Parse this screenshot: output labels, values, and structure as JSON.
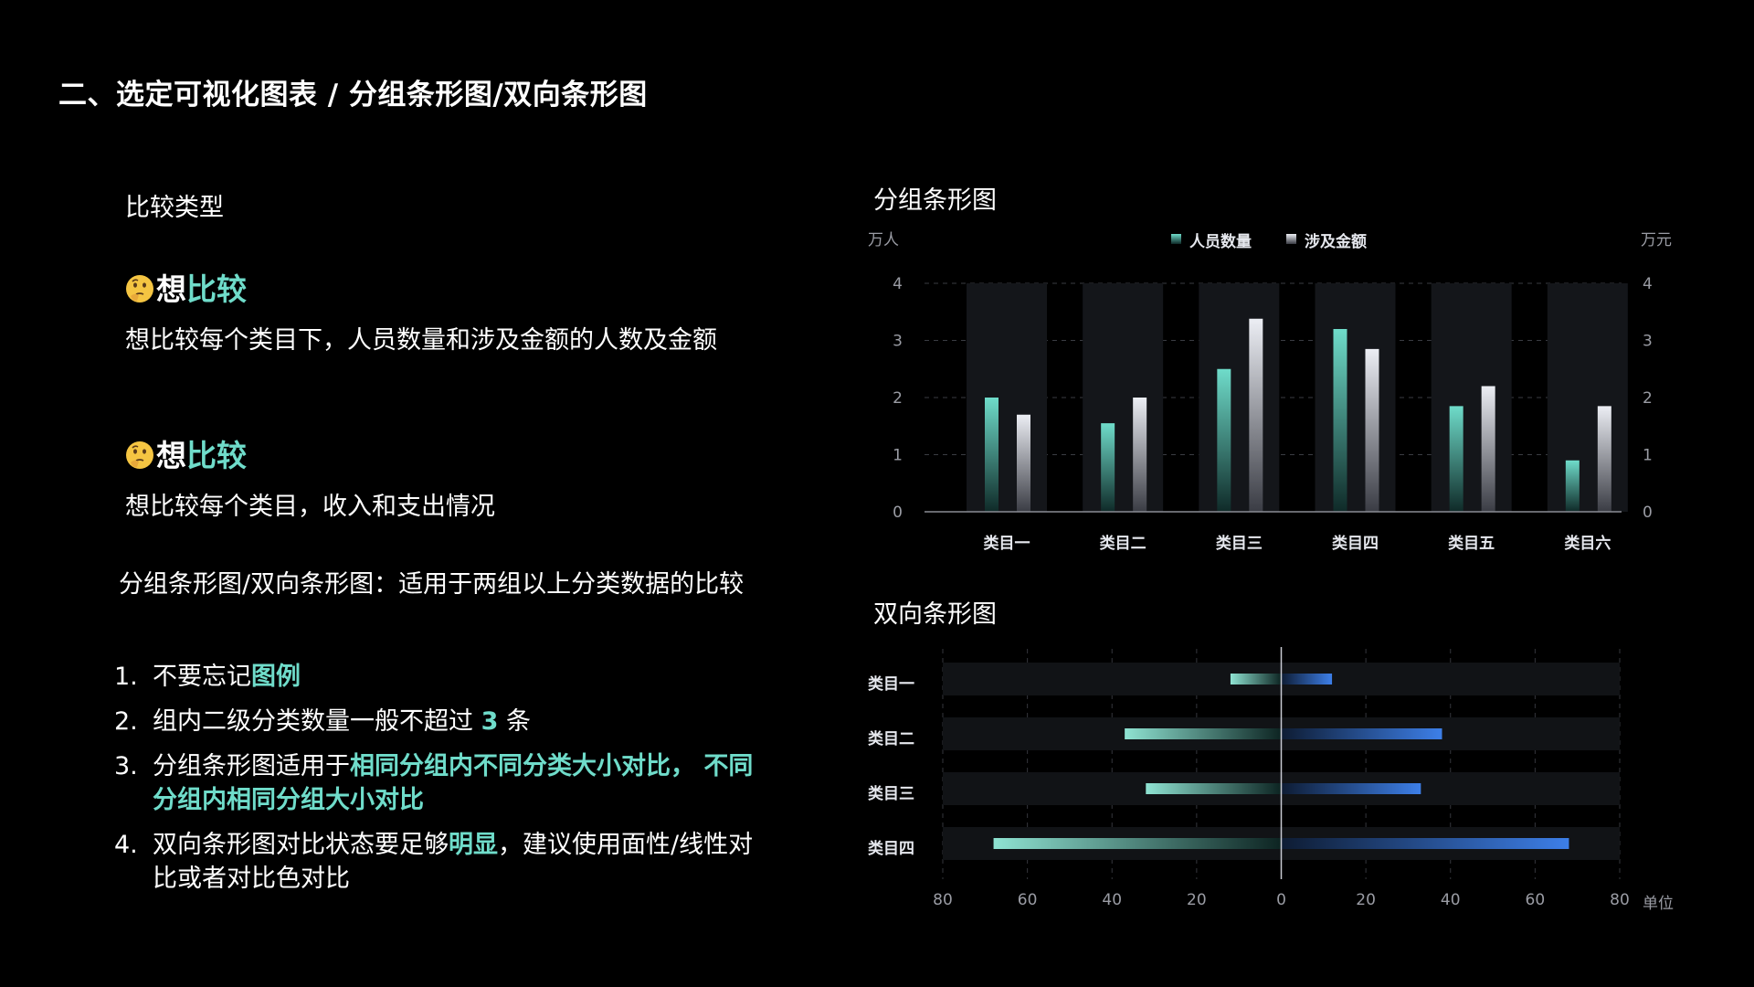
{
  "page_title": "二、选定可视化图表 / 分组条形图/双向条形图",
  "left": {
    "subhead": "比较类型",
    "think_prefix": "想",
    "think_accent": "比较",
    "block1_desc": "想比较每个类目下，人员数量和涉及金额的人数及金额",
    "block2_desc": "想比较每个类目，收入和支出情况",
    "summary": "分组条形图/双向条形图：适用于两组以上分类数据的比较",
    "tips": [
      {
        "num": "1.",
        "parts": [
          {
            "t": "不要忘记",
            "hl": false
          },
          {
            "t": "图例",
            "hl": true
          }
        ]
      },
      {
        "num": "2.",
        "parts": [
          {
            "t": "组内二级分类数量一般不超过 ",
            "hl": false
          },
          {
            "t": "3",
            "hl": true
          },
          {
            "t": " 条",
            "hl": false
          }
        ]
      },
      {
        "num": "3.",
        "parts": [
          {
            "t": "分组条形图适用于",
            "hl": false
          },
          {
            "t": "相同分组内不同分类大小对比， 不同分组内相同分组大小对比",
            "hl": true
          }
        ]
      },
      {
        "num": "4.",
        "parts": [
          {
            "t": "双向条形图对比状态要足够",
            "hl": false
          },
          {
            "t": "明显",
            "hl": true
          },
          {
            "t": "，建议使用面性/线性对比或者对比色对比",
            "hl": false
          }
        ]
      }
    ]
  },
  "colors": {
    "accent": "#6fdcca",
    "teal": "#5ec7b4",
    "silver": "#d8dbe4",
    "blue": "#3d7fe8",
    "background": "#000000"
  },
  "chart_data": [
    {
      "type": "bar",
      "title": "分组条形图",
      "categories": [
        "类目一",
        "类目二",
        "类目三",
        "类目四",
        "类目五",
        "类目六"
      ],
      "series": [
        {
          "name": "人员数量",
          "values": [
            2.0,
            1.55,
            2.5,
            3.2,
            1.85,
            0.9
          ]
        },
        {
          "name": "涉及金额",
          "values": [
            1.7,
            2.0,
            3.38,
            2.85,
            2.2,
            1.85
          ]
        }
      ],
      "ylabel_left": "万人",
      "ylabel_right": "万元",
      "ylim": [
        0,
        4
      ],
      "yticks": [
        0,
        1,
        2,
        3,
        4
      ],
      "legend_position": "top-center",
      "grid": true
    },
    {
      "type": "bar",
      "orientation": "horizontal-diverging",
      "title": "双向条形图",
      "categories": [
        "类目一",
        "类目二",
        "类目三",
        "类目四"
      ],
      "series": [
        {
          "name": "left",
          "values": [
            -12,
            -37,
            -32,
            -68
          ]
        },
        {
          "name": "right",
          "values": [
            12,
            38,
            33,
            68
          ]
        }
      ],
      "xlabel": "单位",
      "xlim": [
        -80,
        80
      ],
      "xticks": [
        -80,
        -60,
        -40,
        -20,
        0,
        20,
        40,
        60,
        80
      ],
      "xtick_labels": [
        "80",
        "60",
        "40",
        "20",
        "0",
        "20",
        "40",
        "60",
        "80"
      ],
      "grid": true
    }
  ]
}
